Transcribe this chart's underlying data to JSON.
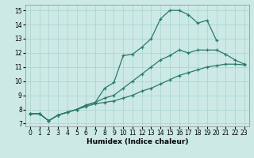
{
  "title": "",
  "xlabel": "Humidex (Indice chaleur)",
  "xlim": [
    -0.5,
    23.5
  ],
  "ylim": [
    6.8,
    15.4
  ],
  "xticks": [
    0,
    1,
    2,
    3,
    4,
    5,
    6,
    7,
    8,
    9,
    10,
    11,
    12,
    13,
    14,
    15,
    16,
    17,
    18,
    19,
    20,
    21,
    22,
    23
  ],
  "yticks": [
    7,
    8,
    9,
    10,
    11,
    12,
    13,
    14,
    15
  ],
  "bg_color": "#cce9e5",
  "grid_color": "#aed6d0",
  "line_color": "#2a7a6a",
  "line1_x": [
    0,
    1,
    2,
    3,
    4,
    5,
    6,
    7,
    8,
    9,
    10,
    11,
    12,
    13,
    14,
    15,
    16,
    17,
    18,
    19,
    20
  ],
  "line1_y": [
    7.7,
    7.7,
    7.2,
    7.6,
    7.8,
    8.0,
    8.3,
    8.5,
    9.5,
    9.9,
    11.8,
    11.9,
    12.4,
    13.0,
    14.4,
    15.0,
    15.0,
    14.7,
    14.1,
    14.3,
    12.9
  ],
  "line2_x": [
    0,
    1,
    2,
    3,
    4,
    5,
    6,
    7,
    8,
    9,
    10,
    11,
    12,
    13,
    14,
    15,
    16,
    17,
    18,
    19,
    20,
    21,
    22,
    23
  ],
  "line2_y": [
    7.7,
    7.7,
    7.2,
    7.6,
    7.8,
    8.0,
    8.3,
    8.5,
    8.8,
    9.0,
    9.5,
    10.0,
    10.5,
    11.0,
    11.5,
    11.8,
    12.2,
    12.0,
    12.2,
    12.2,
    12.2,
    11.9,
    11.5,
    11.2
  ],
  "line3_x": [
    0,
    1,
    2,
    3,
    4,
    5,
    6,
    7,
    8,
    9,
    10,
    11,
    12,
    13,
    14,
    15,
    16,
    17,
    18,
    19,
    20,
    21,
    22,
    23
  ],
  "line3_y": [
    7.7,
    7.7,
    7.2,
    7.6,
    7.8,
    8.0,
    8.2,
    8.4,
    8.5,
    8.6,
    8.8,
    9.0,
    9.3,
    9.5,
    9.8,
    10.1,
    10.4,
    10.6,
    10.8,
    11.0,
    11.1,
    11.2,
    11.2,
    11.15
  ]
}
